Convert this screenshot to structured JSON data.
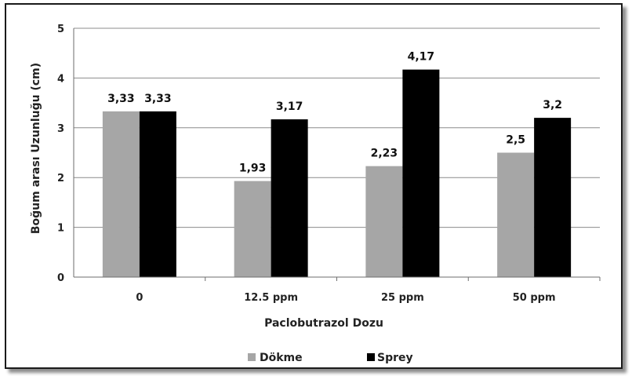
{
  "chart_data": {
    "type": "bar",
    "title": "",
    "xlabel": "Paclobutrazol Dozu",
    "ylabel": "Boğum arası Uzunluğu (cm)",
    "categories": [
      "0",
      "12.5 ppm",
      "25 ppm",
      "50 ppm"
    ],
    "series": [
      {
        "name": "Dökme",
        "values": [
          3.33,
          1.93,
          2.23,
          2.5
        ],
        "labels": [
          "3,33",
          "1,93",
          "2,23",
          "2,5"
        ],
        "color": "#a6a6a6"
      },
      {
        "name": "Sprey",
        "values": [
          3.33,
          3.17,
          4.17,
          3.2
        ],
        "labels": [
          "3,33",
          "3,17",
          "4,17",
          "3,2"
        ],
        "color": "#000000"
      }
    ],
    "ylim": [
      0,
      5
    ],
    "yticks": [
      "0",
      "1",
      "2",
      "3",
      "4",
      "5"
    ],
    "grid": true,
    "legend_position": "bottom"
  }
}
